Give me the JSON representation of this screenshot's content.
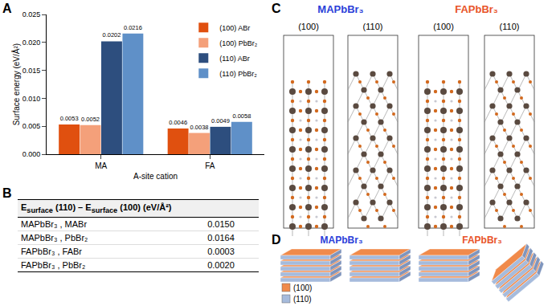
{
  "panels": [
    "A",
    "B",
    "C",
    "D"
  ],
  "chart_data": {
    "type": "bar",
    "x_label": "A-site cation",
    "y_label": "Surface energy (eV/Å²)",
    "categories": [
      "MA",
      "FA"
    ],
    "series": [
      {
        "name": "(100) ABr",
        "color": "#e0500f",
        "values": [
          0.0053,
          0.0046
        ]
      },
      {
        "name": "(100) PbBr₂",
        "color": "#f4a07a",
        "values": [
          0.0052,
          0.0038
        ]
      },
      {
        "name": "(110) ABr",
        "color": "#2d4e7e",
        "values": [
          0.0202,
          0.0049
        ]
      },
      {
        "name": "(110) PbBr₂",
        "color": "#5f90c8",
        "values": [
          0.0216,
          0.0058
        ]
      }
    ],
    "ylim": [
      0,
      0.025
    ],
    "yticks": [
      {
        "value": 0,
        "label": "0.000"
      },
      0.005,
      {
        "value": 0.01,
        "label": "0.010"
      },
      0.015,
      {
        "value": 0.02,
        "label": "0.020"
      },
      0.025
    ],
    "grid": false,
    "legend": "top right",
    "data_labels": true
  },
  "table": {
    "header": {
      "term1": {
        "base": "E",
        "sub": "surface",
        "arg": "(110)"
      },
      "op": "–",
      "term2": {
        "base": "E",
        "sub": "surface",
        "arg": "(100)"
      },
      "unit": "(eV/Å²)"
    },
    "rows": [
      [
        "MAPbBr₃ , MABr",
        "0.0150"
      ],
      [
        "MAPbBr₃ , PbBr₂",
        "0.0164"
      ],
      [
        "FAPbBr₃ , FABr",
        "0.0003"
      ],
      [
        "FAPbBr₃ , PbBr₂",
        "0.0020"
      ]
    ]
  },
  "structures": [
    {
      "title": "MAPbBr₃",
      "color": "#2b3fd9",
      "facets": [
        "(100)",
        "(110)"
      ]
    },
    {
      "title": "FAPbBr₃",
      "color": "#e8542a",
      "facets": [
        "(100)",
        "(110)"
      ]
    }
  ],
  "slabs": {
    "titles": [
      {
        "text": "MAPbBr₃",
        "color": "#2b3fd9"
      },
      {
        "text": "FAPbBr₃",
        "color": "#e8542a"
      }
    ],
    "legend": [
      {
        "label": "(100)",
        "color": "#f08a4b"
      },
      {
        "label": "(110)",
        "color": "#a6bbdc"
      }
    ]
  }
}
